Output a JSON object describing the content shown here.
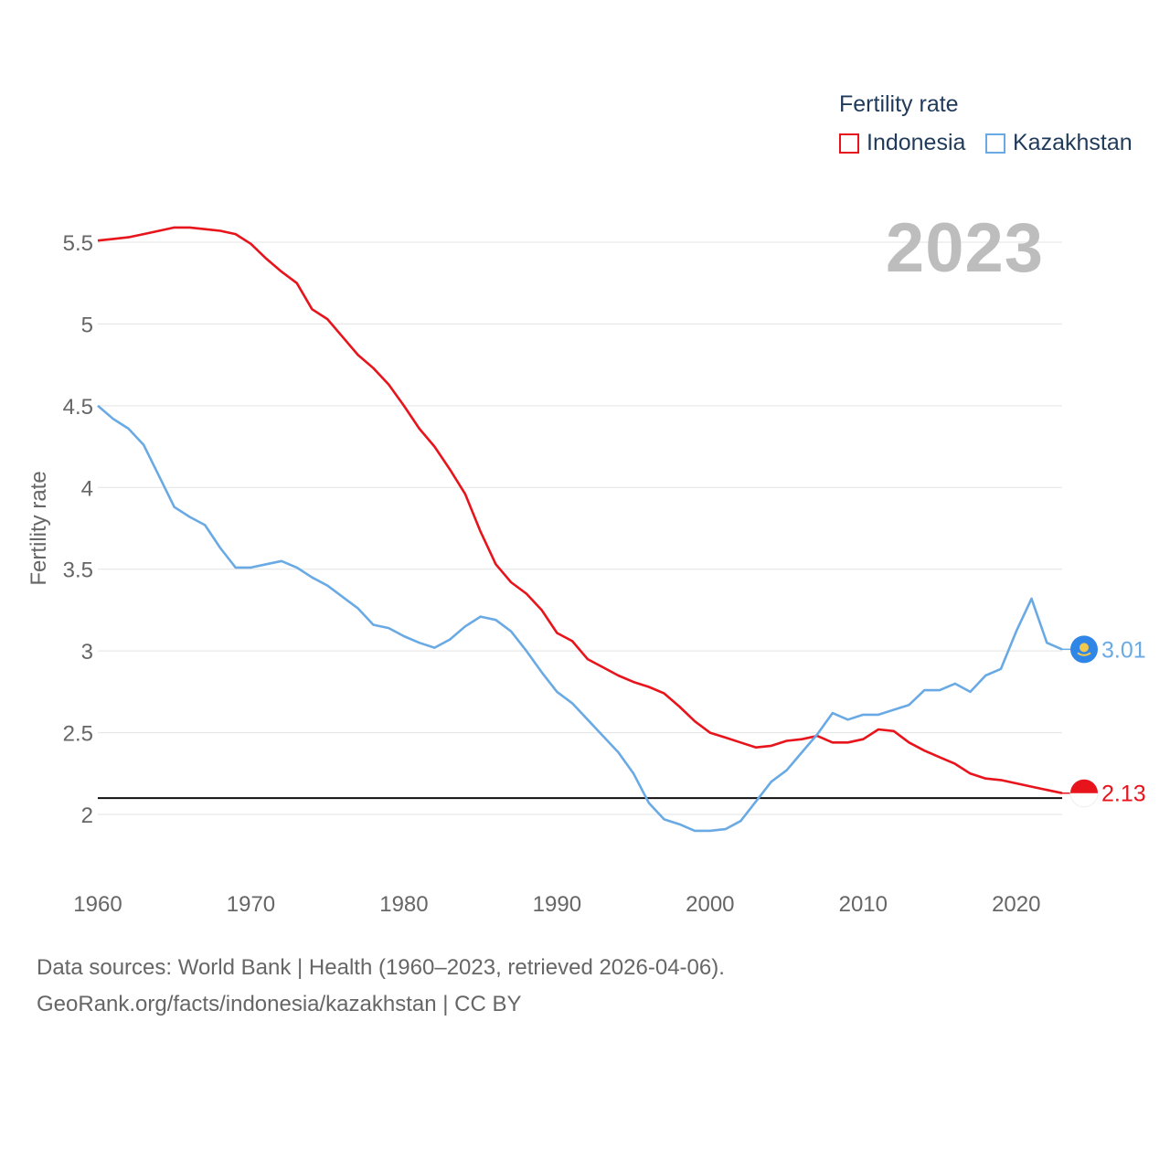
{
  "chart_data": {
    "type": "line",
    "title": "Fertility rate",
    "ylabel": "Fertility rate",
    "xlabel": "",
    "xlim": [
      1960,
      2023
    ],
    "ylim": [
      1.7,
      5.7
    ],
    "yticks": [
      2,
      2.5,
      3,
      3.5,
      4,
      4.5,
      5,
      5.5
    ],
    "ytick_labels": [
      "2",
      "2.5",
      "3",
      "3.5",
      "4",
      "4.5",
      "5",
      "5.5"
    ],
    "xticks": [
      1960,
      1970,
      1980,
      1990,
      2000,
      2010,
      2020
    ],
    "xtick_labels": [
      "1960",
      "1970",
      "1980",
      "1990",
      "2000",
      "2010",
      "2020"
    ],
    "reference_line": 2.1,
    "current_year": "2023",
    "series": [
      {
        "name": "Indonesia",
        "color": "#e8141c",
        "end_label": "2.13",
        "x": [
          1960,
          1961,
          1962,
          1963,
          1964,
          1965,
          1966,
          1967,
          1968,
          1969,
          1970,
          1971,
          1972,
          1973,
          1974,
          1975,
          1976,
          1977,
          1978,
          1979,
          1980,
          1981,
          1982,
          1983,
          1984,
          1985,
          1986,
          1987,
          1988,
          1989,
          1990,
          1991,
          1992,
          1993,
          1994,
          1995,
          1996,
          1997,
          1998,
          1999,
          2000,
          2001,
          2002,
          2003,
          2004,
          2005,
          2006,
          2007,
          2008,
          2009,
          2010,
          2011,
          2012,
          2013,
          2014,
          2015,
          2016,
          2017,
          2018,
          2019,
          2020,
          2021,
          2022,
          2023
        ],
        "values": [
          5.51,
          5.52,
          5.53,
          5.55,
          5.57,
          5.59,
          5.59,
          5.58,
          5.57,
          5.55,
          5.49,
          5.4,
          5.32,
          5.25,
          5.09,
          5.03,
          4.92,
          4.81,
          4.73,
          4.63,
          4.5,
          4.36,
          4.25,
          4.11,
          3.96,
          3.73,
          3.53,
          3.42,
          3.35,
          3.25,
          3.11,
          3.06,
          2.95,
          2.9,
          2.85,
          2.81,
          2.78,
          2.74,
          2.66,
          2.57,
          2.5,
          2.47,
          2.44,
          2.41,
          2.42,
          2.45,
          2.46,
          2.48,
          2.44,
          2.44,
          2.46,
          2.52,
          2.51,
          2.44,
          2.39,
          2.35,
          2.31,
          2.25,
          2.22,
          2.21,
          2.19,
          2.17,
          2.15,
          2.13
        ]
      },
      {
        "name": "Kazakhstan",
        "color": "#6aaae4",
        "end_label": "3.01",
        "x": [
          1960,
          1961,
          1962,
          1963,
          1964,
          1965,
          1966,
          1967,
          1968,
          1969,
          1970,
          1971,
          1972,
          1973,
          1974,
          1975,
          1976,
          1977,
          1978,
          1979,
          1980,
          1981,
          1982,
          1983,
          1984,
          1985,
          1986,
          1987,
          1988,
          1989,
          1990,
          1991,
          1992,
          1993,
          1994,
          1995,
          1996,
          1997,
          1998,
          1999,
          2000,
          2001,
          2002,
          2003,
          2004,
          2005,
          2006,
          2007,
          2008,
          2009,
          2010,
          2011,
          2012,
          2013,
          2014,
          2015,
          2016,
          2017,
          2018,
          2019,
          2020,
          2021,
          2022,
          2023
        ],
        "values": [
          4.5,
          4.42,
          4.36,
          4.26,
          4.07,
          3.88,
          3.82,
          3.77,
          3.63,
          3.51,
          3.51,
          3.53,
          3.55,
          3.51,
          3.45,
          3.4,
          3.33,
          3.26,
          3.16,
          3.14,
          3.09,
          3.05,
          3.02,
          3.07,
          3.15,
          3.21,
          3.19,
          3.12,
          3.0,
          2.87,
          2.75,
          2.68,
          2.58,
          2.48,
          2.38,
          2.25,
          2.07,
          1.97,
          1.94,
          1.9,
          1.9,
          1.91,
          1.96,
          2.08,
          2.2,
          2.27,
          2.38,
          2.49,
          2.62,
          2.58,
          2.61,
          2.61,
          2.64,
          2.67,
          2.76,
          2.76,
          2.8,
          2.75,
          2.85,
          2.89,
          3.12,
          3.32,
          3.05,
          3.01
        ]
      }
    ]
  },
  "footer": {
    "sources": "Data sources: World Bank | Health (1960–2023, retrieved 2026-04-06).",
    "credit": "GeoRank.org/facts/indonesia/kazakhstan | CC BY"
  }
}
